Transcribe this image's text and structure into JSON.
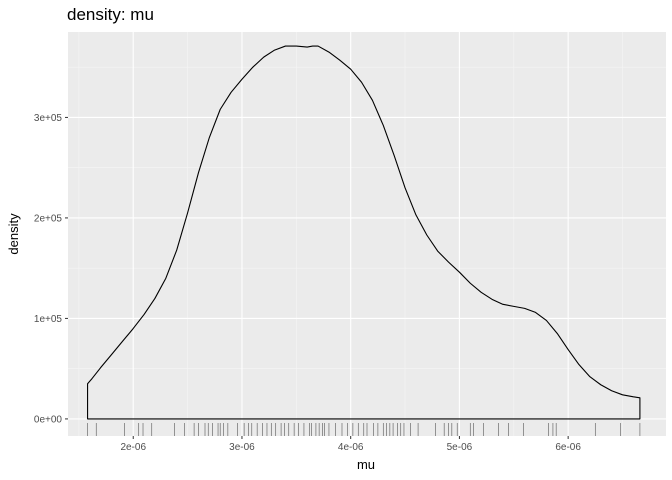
{
  "chart_data": {
    "type": "area",
    "title": "density: mu",
    "xlabel": "mu",
    "ylabel": "density",
    "xlim": [
      1.4e-06,
      6.9e-06
    ],
    "ylim": [
      -17000.0,
      385000.0
    ],
    "x_ticks": [
      {
        "value": 2e-06,
        "label": "2e-06"
      },
      {
        "value": 3e-06,
        "label": "3e-06"
      },
      {
        "value": 4e-06,
        "label": "4e-06"
      },
      {
        "value": 5e-06,
        "label": "5e-06"
      },
      {
        "value": 6e-06,
        "label": "6e-06"
      }
    ],
    "y_ticks": [
      {
        "value": 0,
        "label": "0e+00"
      },
      {
        "value": 100000,
        "label": "1e+05"
      },
      {
        "value": 200000,
        "label": "2e+05"
      },
      {
        "value": 300000,
        "label": "3e+05"
      }
    ],
    "grid": true,
    "panel_background": "#ebebeb",
    "line_color": "#000000",
    "series": [
      {
        "x": [
          1.58e-06,
          1.62e-06,
          1.7e-06,
          1.8e-06,
          1.9e-06,
          2e-06,
          2.1e-06,
          2.2e-06,
          2.3e-06,
          2.4e-06,
          2.5e-06,
          2.6e-06,
          2.7e-06,
          2.8e-06,
          2.9e-06,
          3e-06,
          3.1e-06,
          3.2e-06,
          3.3e-06,
          3.4e-06,
          3.5e-06,
          3.6e-06,
          3.65e-06,
          3.7e-06,
          3.8e-06,
          3.9e-06,
          4e-06,
          4.1e-06,
          4.2e-06,
          4.3e-06,
          4.4e-06,
          4.5e-06,
          4.6e-06,
          4.7e-06,
          4.8e-06,
          4.9e-06,
          5e-06,
          5.1e-06,
          5.2e-06,
          5.3e-06,
          5.4e-06,
          5.5e-06,
          5.6e-06,
          5.7e-06,
          5.8e-06,
          5.9e-06,
          6e-06,
          6.1e-06,
          6.2e-06,
          6.3e-06,
          6.4e-06,
          6.5e-06,
          6.6e-06,
          6.66e-06
        ],
        "y": [
          35000,
          40000,
          51000,
          64000,
          77000,
          90000,
          104000,
          120000,
          140000,
          168000,
          205000,
          245000,
          280000,
          308000,
          325000,
          338000,
          350000,
          360000,
          367000,
          371000,
          371000,
          370000,
          371000,
          371000,
          365000,
          357000,
          348000,
          335000,
          317000,
          292000,
          262000,
          230000,
          203000,
          183000,
          167000,
          156000,
          146000,
          135000,
          126000,
          119000,
          114000,
          112000,
          110000,
          106000,
          98000,
          85000,
          69000,
          54000,
          42000,
          34000,
          28000,
          24000,
          22000,
          21000
        ]
      }
    ],
    "rug": [
      1.58e-06,
      1.66e-06,
      1.92e-06,
      2.05e-06,
      2.09e-06,
      2.17e-06,
      2.38e-06,
      2.47e-06,
      2.56e-06,
      2.6e-06,
      2.66e-06,
      2.69e-06,
      2.73e-06,
      2.78e-06,
      2.8e-06,
      2.83e-06,
      2.87e-06,
      2.96e-06,
      3.02e-06,
      3.06e-06,
      3.09e-06,
      3.14e-06,
      3.19e-06,
      3.23e-06,
      3.27e-06,
      3.31e-06,
      3.36e-06,
      3.39e-06,
      3.43e-06,
      3.48e-06,
      3.52e-06,
      3.57e-06,
      3.62e-06,
      3.64e-06,
      3.68e-06,
      3.71e-06,
      3.74e-06,
      3.76e-06,
      3.8e-06,
      3.86e-06,
      3.92e-06,
      3.97e-06,
      4.02e-06,
      4.07e-06,
      4.12e-06,
      4.15e-06,
      4.21e-06,
      4.25e-06,
      4.3e-06,
      4.33e-06,
      4.36e-06,
      4.39e-06,
      4.43e-06,
      4.46e-06,
      4.49e-06,
      4.55e-06,
      4.62e-06,
      4.78e-06,
      4.86e-06,
      4.9e-06,
      4.93e-06,
      4.98e-06,
      5.1e-06,
      5.13e-06,
      5.22e-06,
      5.36e-06,
      5.45e-06,
      5.59e-06,
      5.82e-06,
      5.86e-06,
      5.89e-06,
      6.25e-06,
      6.48e-06,
      6.66e-06
    ]
  }
}
